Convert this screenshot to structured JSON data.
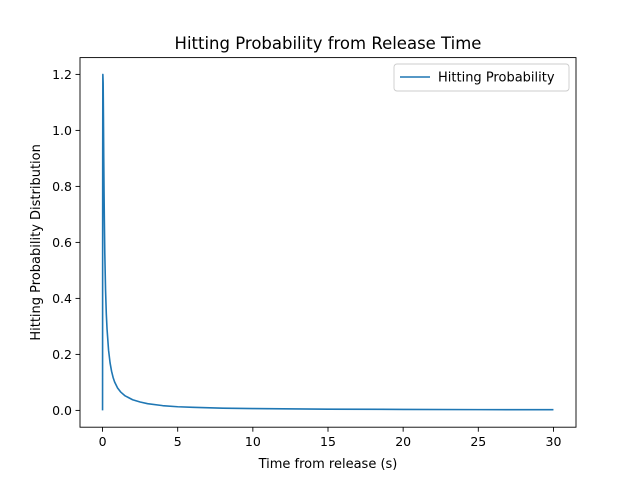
{
  "chart_data": {
    "type": "line",
    "title": "Hitting Probability from Release Time",
    "xlabel": "Time from release (s)",
    "ylabel": "Hitting Probability Distribution",
    "xlim": [
      -1.5,
      31.5
    ],
    "ylim": [
      -0.06,
      1.26
    ],
    "xticks": [
      0,
      5,
      10,
      15,
      20,
      25,
      30
    ],
    "yticks": [
      0.0,
      0.2,
      0.4,
      0.6,
      0.8,
      1.0,
      1.2
    ],
    "xtick_labels": [
      "0",
      "5",
      "10",
      "15",
      "20",
      "25",
      "30"
    ],
    "ytick_labels": [
      "0.0",
      "0.2",
      "0.4",
      "0.6",
      "0.8",
      "1.0",
      "1.2"
    ],
    "grid": false,
    "legend": {
      "position": "top-right"
    },
    "series": [
      {
        "name": "Hitting Probability",
        "color": "#1f77b4",
        "x": [
          0,
          0.01,
          0.02,
          0.04,
          0.06,
          0.08,
          0.1,
          0.12,
          0.15,
          0.2,
          0.25,
          0.3,
          0.4,
          0.5,
          0.6,
          0.7,
          0.8,
          1.0,
          1.2,
          1.5,
          2.0,
          2.5,
          3.0,
          4.0,
          5.0,
          6.0,
          8.0,
          10.0,
          12.0,
          15.0,
          20.0,
          25.0,
          30.0
        ],
        "y": [
          0.0,
          0.9,
          1.2,
          1.17,
          1.05,
          0.9,
          0.78,
          0.68,
          0.56,
          0.43,
          0.345,
          0.29,
          0.215,
          0.17,
          0.14,
          0.118,
          0.102,
          0.08,
          0.066,
          0.052,
          0.038,
          0.03,
          0.024,
          0.017,
          0.013,
          0.011,
          0.008,
          0.0065,
          0.0055,
          0.0045,
          0.0035,
          0.0028,
          0.0024
        ]
      }
    ]
  }
}
